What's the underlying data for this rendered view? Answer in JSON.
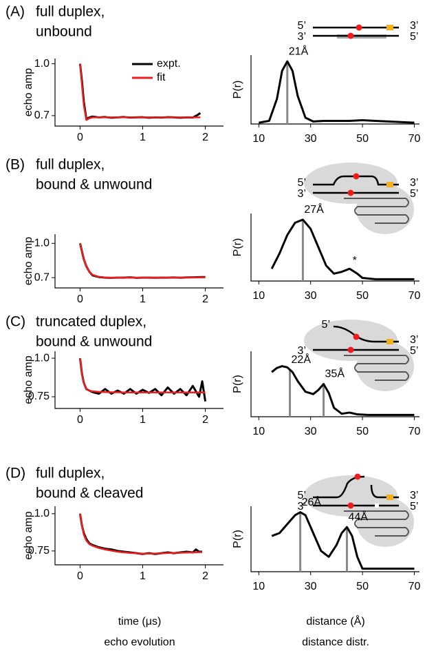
{
  "panels": [
    {
      "label": "(A)",
      "title": [
        "full duplex,",
        "unbound"
      ]
    },
    {
      "label": "(B)",
      "title": [
        "full duplex,",
        "bound & unwound"
      ]
    },
    {
      "label": "(C)",
      "title": [
        "truncated duplex,",
        "bound & unwound"
      ]
    },
    {
      "label": "(D)",
      "title": [
        "full duplex,",
        "bound & cleaved"
      ]
    }
  ],
  "diagrams": [
    {
      "labels": [
        "5’",
        "3’",
        "3’",
        "5’"
      ]
    },
    {
      "labels": [
        "5’",
        "3’",
        "3’",
        "5’"
      ]
    },
    {
      "labels": [
        "5’",
        "3’",
        "3’",
        "5’"
      ]
    },
    {
      "labels": [
        "5’",
        "3’",
        "3’",
        "5’"
      ]
    }
  ],
  "footer": {
    "echo_xlabel": "time (μs)",
    "echo_caption": "echo evolution",
    "dist_xlabel": "distance (Å)",
    "dist_caption": "distance distr."
  },
  "chart_data": [
    {
      "type": "line",
      "ylabel": "echo amp",
      "xlim": [
        -0.4,
        2.29
      ],
      "ylim": [
        0.64,
        1.03
      ],
      "xticks": [
        0,
        1,
        2
      ],
      "yticks": [
        0.7,
        {
          "value": 1,
          "label": "1.0"
        }
      ],
      "legend": true,
      "x": [
        0,
        0.03,
        0.06,
        0.1,
        0.15,
        0.2,
        0.3,
        0.4,
        0.5,
        0.6,
        0.7,
        0.8,
        0.9,
        1.0,
        1.1,
        1.2,
        1.3,
        1.4,
        1.5,
        1.6,
        1.7,
        1.8,
        1.88,
        1.92
      ],
      "series": [
        {
          "name": "expt.",
          "color": "#000000",
          "values": [
            1.0,
            0.9,
            0.78,
            0.68,
            0.69,
            0.695,
            0.69,
            0.692,
            0.688,
            0.69,
            0.692,
            0.689,
            0.69,
            0.691,
            0.688,
            0.69,
            0.689,
            0.691,
            0.69,
            0.688,
            0.69,
            0.689,
            0.705,
            0.715
          ]
        },
        {
          "name": "fit",
          "color": "#ee1c1c",
          "values": [
            1.0,
            0.88,
            0.76,
            0.675,
            0.685,
            0.69,
            0.69,
            0.69,
            0.69,
            0.69,
            0.69,
            0.69,
            0.69,
            0.69,
            0.69,
            0.69,
            0.69,
            0.69,
            0.69,
            0.69,
            0.69,
            0.69,
            0.69,
            0.69
          ]
        }
      ]
    },
    {
      "type": "dist",
      "ylabel": "P(r)",
      "xlim": [
        7,
        72
      ],
      "ylim": [
        0,
        1.1
      ],
      "xticks": [
        10,
        30,
        50,
        70
      ],
      "x": [
        10,
        14,
        17,
        19,
        21,
        23,
        25,
        28,
        31,
        35,
        40,
        45,
        50,
        55,
        60,
        65,
        70
      ],
      "values": [
        0.02,
        0.05,
        0.4,
        0.85,
        1.0,
        0.85,
        0.45,
        0.1,
        0.04,
        0.05,
        0.05,
        0.05,
        0.06,
        0.05,
        0.04,
        0.03,
        0.02
      ],
      "peaks": [
        {
          "value": 21,
          "label": "21Å"
        }
      ]
    },
    {
      "type": "line",
      "ylabel": "echo amp",
      "xlim": [
        -0.4,
        2.29
      ],
      "ylim": [
        0.61,
        1.08
      ],
      "xticks": [
        0,
        1,
        2
      ],
      "yticks": [
        0.7,
        {
          "value": 1,
          "label": "1.0"
        }
      ],
      "x": [
        0,
        0.03,
        0.06,
        0.1,
        0.15,
        0.2,
        0.3,
        0.4,
        0.5,
        0.6,
        0.7,
        0.8,
        0.9,
        1.0,
        1.1,
        1.2,
        1.3,
        1.4,
        1.5,
        1.6,
        1.7,
        1.8,
        1.9,
        1.95,
        2.0
      ],
      "series": [
        {
          "color": "#000000",
          "values": [
            1.0,
            0.93,
            0.86,
            0.8,
            0.75,
            0.72,
            0.705,
            0.7,
            0.698,
            0.7,
            0.7,
            0.702,
            0.698,
            0.7,
            0.7,
            0.699,
            0.7,
            0.7,
            0.701,
            0.7,
            0.702,
            0.703,
            0.704,
            0.705,
            0.705
          ]
        },
        {
          "color": "#ee1c1c",
          "values": [
            1.0,
            0.93,
            0.86,
            0.8,
            0.75,
            0.725,
            0.707,
            0.701,
            0.699,
            0.699,
            0.699,
            0.699,
            0.699,
            0.699,
            0.7,
            0.7,
            0.7,
            0.7,
            0.7,
            0.701,
            0.701,
            0.702,
            0.702,
            0.703,
            0.703
          ]
        }
      ]
    },
    {
      "type": "dist",
      "ylabel": "P(r)",
      "xlim": [
        7,
        72
      ],
      "ylim": [
        0,
        1.1
      ],
      "xticks": [
        10,
        30,
        50,
        70
      ],
      "x": [
        15,
        18,
        21,
        24,
        27,
        30,
        33,
        36,
        39,
        42,
        45,
        48,
        50,
        55,
        60,
        65,
        70
      ],
      "values": [
        0.2,
        0.45,
        0.75,
        0.95,
        1.0,
        0.85,
        0.55,
        0.25,
        0.12,
        0.15,
        0.2,
        0.12,
        0.05,
        0.03,
        0.03,
        0.03,
        0.03
      ],
      "peaks": [
        {
          "value": 27,
          "label": "27Å"
        }
      ],
      "annotations": [
        {
          "text": "*",
          "x": 47,
          "y": 0.33
        }
      ]
    },
    {
      "type": "line",
      "ylabel": "echo amp",
      "xlim": [
        -0.4,
        2.29
      ],
      "ylim": [
        0.674,
        1.045
      ],
      "xticks": [
        0,
        1,
        2
      ],
      "yticks": [
        0.75,
        {
          "value": 1,
          "label": "1.0"
        }
      ],
      "x": [
        0,
        0.03,
        0.06,
        0.1,
        0.15,
        0.2,
        0.3,
        0.4,
        0.5,
        0.6,
        0.7,
        0.8,
        0.9,
        1.0,
        1.1,
        1.2,
        1.3,
        1.4,
        1.5,
        1.6,
        1.7,
        1.8,
        1.9,
        1.95,
        2.0
      ],
      "series": [
        {
          "color": "#000000",
          "values": [
            1.0,
            0.9,
            0.84,
            0.8,
            0.79,
            0.78,
            0.77,
            0.8,
            0.77,
            0.79,
            0.77,
            0.8,
            0.77,
            0.795,
            0.775,
            0.8,
            0.76,
            0.81,
            0.77,
            0.8,
            0.76,
            0.82,
            0.75,
            0.85,
            0.72
          ]
        },
        {
          "color": "#ee1c1c",
          "values": [
            1.0,
            0.9,
            0.84,
            0.8,
            0.79,
            0.785,
            0.782,
            0.78,
            0.779,
            0.779,
            0.778,
            0.778,
            0.778,
            0.778,
            0.778,
            0.778,
            0.778,
            0.778,
            0.778,
            0.778,
            0.778,
            0.778,
            0.778,
            0.778,
            0.778
          ]
        }
      ]
    },
    {
      "type": "dist",
      "ylabel": "P(r)",
      "xlim": [
        7,
        72
      ],
      "ylim": [
        0,
        1.1
      ],
      "xticks": [
        10,
        30,
        50,
        70
      ],
      "x": [
        15,
        17,
        19,
        21,
        23,
        25,
        28,
        31,
        33,
        35,
        37,
        39,
        42,
        45,
        48,
        52,
        60,
        70
      ],
      "values": [
        0.75,
        0.82,
        0.85,
        0.83,
        0.75,
        0.6,
        0.42,
        0.38,
        0.45,
        0.55,
        0.4,
        0.15,
        0.05,
        0.07,
        0.04,
        0.03,
        0.03,
        0.03
      ],
      "peaks": [
        {
          "value": 22,
          "label": "22Å"
        },
        {
          "value": 35,
          "label": "35Å"
        }
      ]
    },
    {
      "type": "line",
      "ylabel": "echo amp",
      "xlim": [
        -0.4,
        2.29
      ],
      "ylim": [
        0.657,
        1.05
      ],
      "xticks": [
        0,
        1,
        2
      ],
      "yticks": [
        0.75,
        {
          "value": 1,
          "label": "1.0"
        }
      ],
      "x": [
        0,
        0.03,
        0.06,
        0.1,
        0.15,
        0.2,
        0.3,
        0.4,
        0.5,
        0.6,
        0.7,
        0.8,
        0.9,
        1.0,
        1.1,
        1.2,
        1.3,
        1.4,
        1.5,
        1.6,
        1.7,
        1.8,
        1.85,
        1.9,
        1.95
      ],
      "series": [
        {
          "color": "#000000",
          "values": [
            1.0,
            0.92,
            0.87,
            0.83,
            0.8,
            0.79,
            0.775,
            0.765,
            0.76,
            0.75,
            0.745,
            0.74,
            0.735,
            0.73,
            0.735,
            0.73,
            0.735,
            0.74,
            0.735,
            0.74,
            0.745,
            0.74,
            0.76,
            0.745,
            0.745
          ]
        },
        {
          "color": "#ee1c1c",
          "values": [
            1.0,
            0.92,
            0.86,
            0.82,
            0.795,
            0.785,
            0.77,
            0.76,
            0.752,
            0.745,
            0.74,
            0.737,
            0.734,
            0.732,
            0.732,
            0.733,
            0.734,
            0.736,
            0.737,
            0.738,
            0.739,
            0.74,
            0.741,
            0.742,
            0.742
          ]
        }
      ]
    },
    {
      "type": "dist",
      "ylabel": "P(r)",
      "xlim": [
        7,
        72
      ],
      "ylim": [
        0,
        1.1
      ],
      "xticks": [
        10,
        30,
        50,
        70
      ],
      "x": [
        15,
        18,
        21,
        24,
        26,
        28,
        31,
        34,
        37,
        40,
        42,
        44,
        46,
        48,
        50,
        55,
        60,
        70
      ],
      "values": [
        0.6,
        0.65,
        0.8,
        0.95,
        1.0,
        0.95,
        0.65,
        0.35,
        0.25,
        0.45,
        0.65,
        0.75,
        0.6,
        0.25,
        0.05,
        0.05,
        0.05,
        0.05
      ],
      "peaks": [
        {
          "value": 26,
          "label": "26Å"
        },
        {
          "value": 44,
          "label": "44Å"
        }
      ]
    }
  ]
}
